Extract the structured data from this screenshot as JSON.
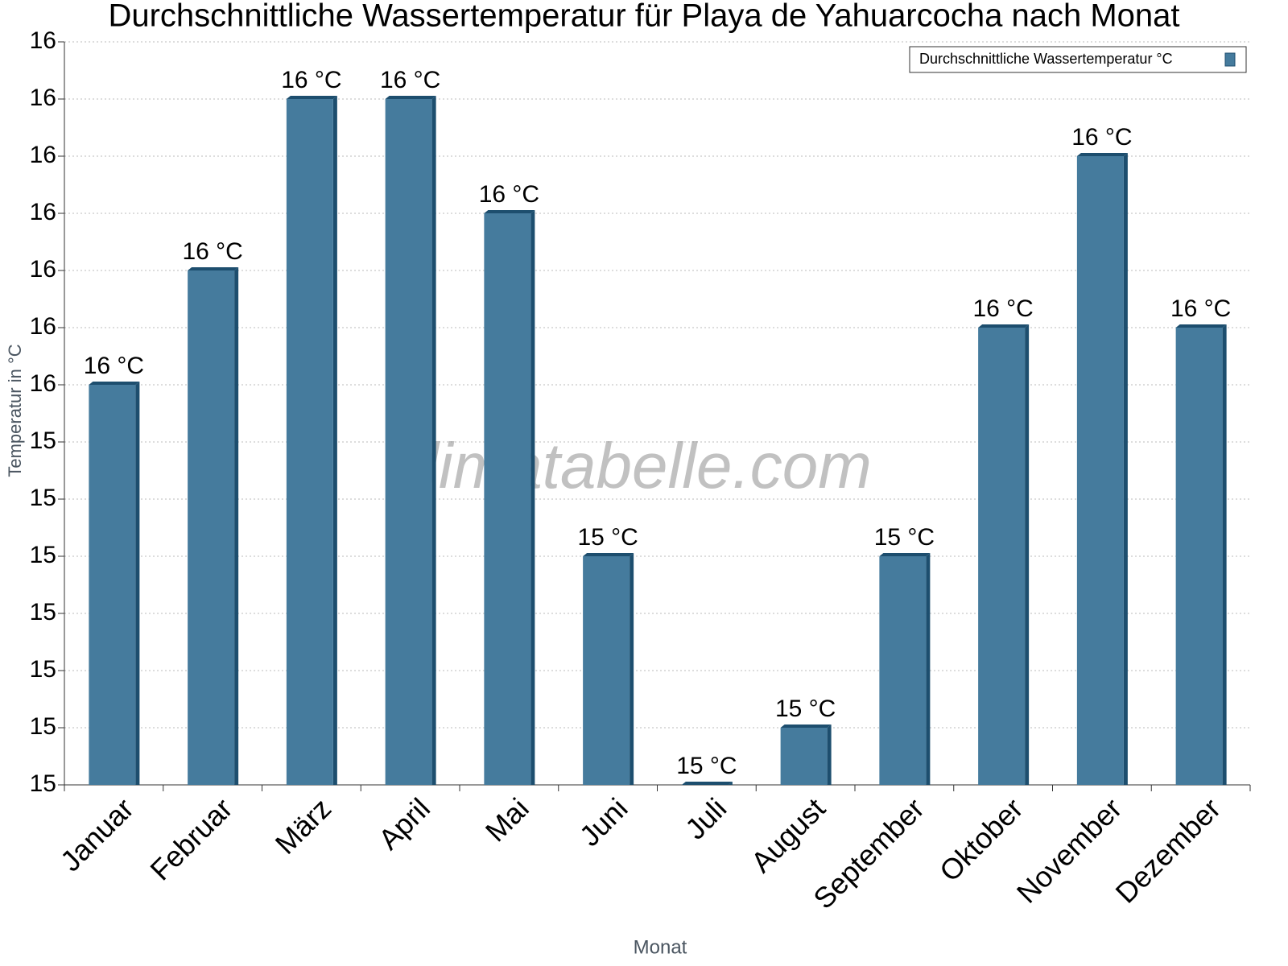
{
  "chart_data": {
    "type": "bar",
    "title": "Durchschnittliche Wassertemperatur für Playa de Yahuarcocha nach Monat",
    "x_label": "Monat",
    "y_label": "Temperatur in °C",
    "watermark": "klimatabelle.com",
    "categories": [
      "Januar",
      "Februar",
      "März",
      "April",
      "Mai",
      "Juni",
      "Juli",
      "August",
      "September",
      "Oktober",
      "November",
      "Dezember"
    ],
    "series": [
      {
        "name": "Durchschnittliche Wassertemperatur °C",
        "color": "#457b9d",
        "values": [
          15.5,
          15.7,
          16.0,
          16.0,
          15.8,
          15.2,
          14.8,
          14.9,
          15.2,
          15.6,
          15.9,
          15.6
        ],
        "value_labels": [
          "16 °C",
          "16 °C",
          "16 °C",
          "16 °C",
          "16 °C",
          "15 °C",
          "15 °C",
          "15 °C",
          "15 °C",
          "16 °C",
          "16 °C",
          "16 °C"
        ]
      }
    ],
    "ylim": [
      14.8,
      16.1
    ],
    "yticks": [
      {
        "value": 14.8,
        "label": "15"
      },
      {
        "value": 14.9,
        "label": "15"
      },
      {
        "value": 15.0,
        "label": "15"
      },
      {
        "value": 15.1,
        "label": "15"
      },
      {
        "value": 15.2,
        "label": "15"
      },
      {
        "value": 15.3,
        "label": "15"
      },
      {
        "value": 15.4,
        "label": "15"
      },
      {
        "value": 15.5,
        "label": "16"
      },
      {
        "value": 15.6,
        "label": "16"
      },
      {
        "value": 15.7,
        "label": "16"
      },
      {
        "value": 15.8,
        "label": "16"
      },
      {
        "value": 15.9,
        "label": "16"
      },
      {
        "value": 16.0,
        "label": "16"
      },
      {
        "value": 16.1,
        "label": "16"
      }
    ],
    "grid": true,
    "legend": "top-right"
  }
}
